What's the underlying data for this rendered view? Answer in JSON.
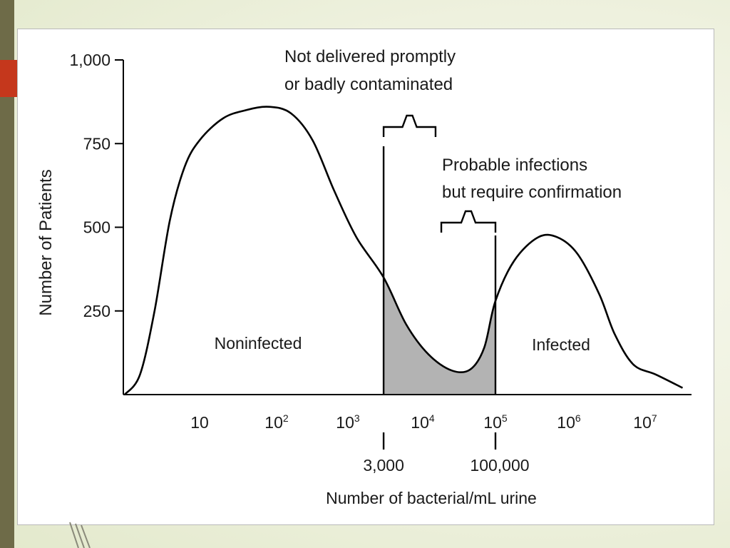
{
  "colors": {
    "background": "#e9eed6",
    "left_bar": "#6e6b48",
    "accent": "#c5371c",
    "curve": "#000000",
    "shaded_region": "#b3b3b3"
  },
  "chart_data": {
    "type": "area",
    "title": "",
    "xlabel": "Number of bacterial/mL urine",
    "ylabel": "Number of Patients",
    "x_scale": "log",
    "x_lim": [
      1,
      30000000
    ],
    "ylim": [
      0,
      1000
    ],
    "y_ticks": [
      {
        "value": 250,
        "label": "250"
      },
      {
        "value": 500,
        "label": "500"
      },
      {
        "value": 750,
        "label": "750"
      },
      {
        "value": 1000,
        "label": "1,000"
      }
    ],
    "x_ticks": [
      {
        "value": 10,
        "base": "10",
        "exp": ""
      },
      {
        "value": 100,
        "base": "10",
        "exp": "2"
      },
      {
        "value": 1000,
        "base": "10",
        "exp": "3"
      },
      {
        "value": 10000,
        "base": "10",
        "exp": "4"
      },
      {
        "value": 100000,
        "base": "10",
        "exp": "5"
      },
      {
        "value": 1000000,
        "base": "10",
        "exp": "6"
      },
      {
        "value": 10000000,
        "base": "10",
        "exp": "7"
      }
    ],
    "x_markers": [
      {
        "value": 3000,
        "label": "3,000"
      },
      {
        "value": 100000,
        "label": "100,000"
      }
    ],
    "series": [
      {
        "points": [
          [
            1.0,
            0
          ],
          [
            1.6,
            60
          ],
          [
            2.5,
            250
          ],
          [
            4.0,
            520
          ],
          [
            6.3,
            680
          ],
          [
            10,
            760
          ],
          [
            20,
            825
          ],
          [
            40,
            850
          ],
          [
            80,
            860
          ],
          [
            160,
            840
          ],
          [
            320,
            760
          ],
          [
            640,
            610
          ],
          [
            1300,
            470
          ],
          [
            3000,
            350
          ],
          [
            6000,
            210
          ],
          [
            12000,
            120
          ],
          [
            25000,
            72
          ],
          [
            45000,
            75
          ],
          [
            70000,
            140
          ],
          [
            100000,
            280
          ],
          [
            180000,
            400
          ],
          [
            380000,
            470
          ],
          [
            700000,
            470
          ],
          [
            1300000,
            420
          ],
          [
            2500000,
            300
          ],
          [
            4000000,
            180
          ],
          [
            7000000,
            90
          ],
          [
            13000000,
            60
          ],
          [
            25000000,
            20
          ]
        ]
      }
    ],
    "shaded_range": [
      3000,
      100000
    ],
    "annotations": [
      {
        "id": "not-delivered",
        "lines": [
          "Not delivered promptly",
          "or badly contaminated"
        ],
        "range": [
          3000,
          15000
        ]
      },
      {
        "id": "probable",
        "lines": [
          "Probable infections",
          "but require confirmation"
        ],
        "range": [
          18000,
          100000
        ]
      }
    ],
    "region_labels": [
      {
        "id": "noninfected",
        "text": "Noninfected"
      },
      {
        "id": "infected",
        "text": "Infected"
      }
    ]
  }
}
